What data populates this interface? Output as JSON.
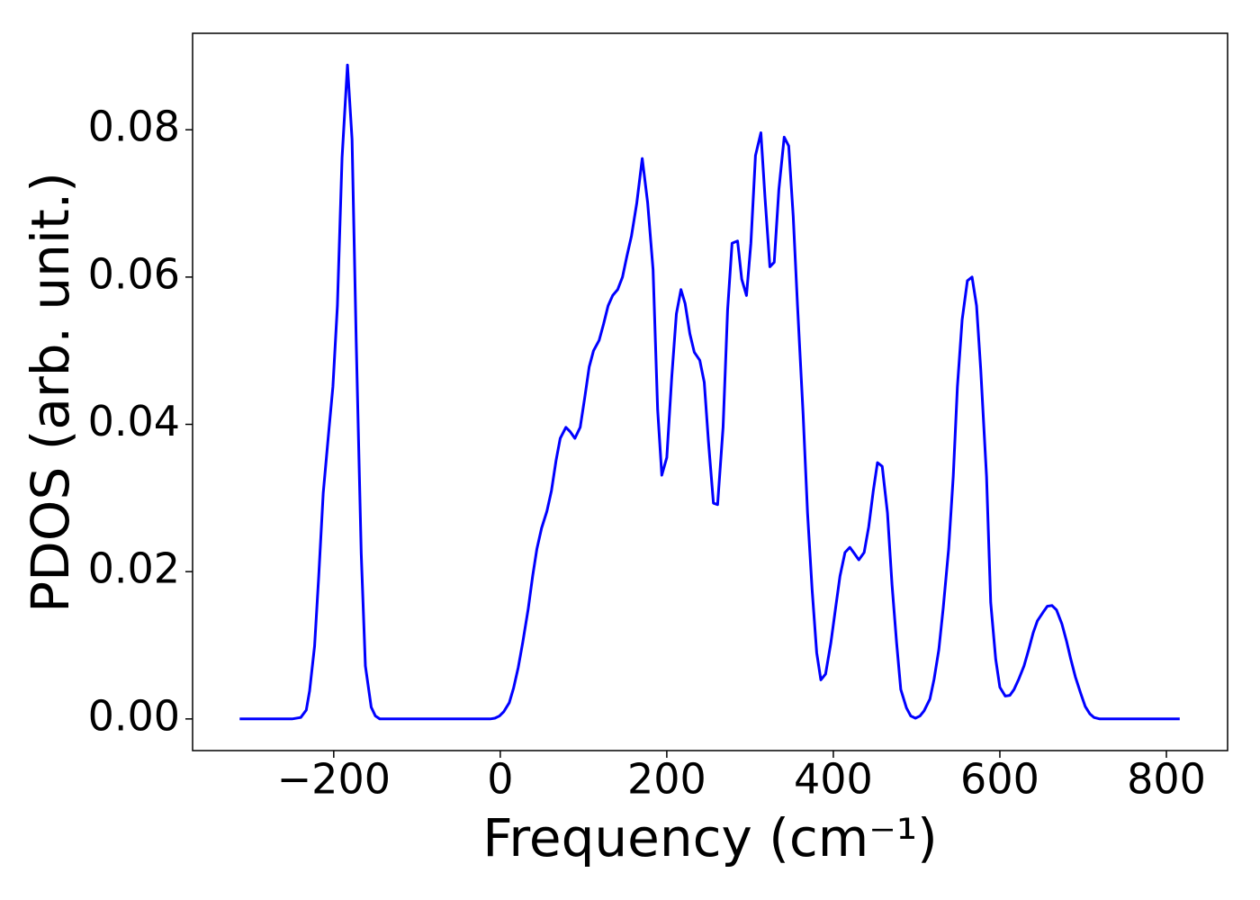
{
  "chart_data": {
    "type": "line",
    "xlabel": "Frequency (cm⁻¹)",
    "ylabel": "PDOS (arb. unit.)",
    "color": "#0000ff",
    "xlim": [
      -369.5,
      873.5
    ],
    "ylim": [
      -0.0043,
      0.0931
    ],
    "xticks": [
      {
        "value": -200,
        "label": "−200"
      },
      0,
      200,
      400,
      600,
      800
    ],
    "yticks": [
      {
        "value": 0,
        "label": "0.00"
      },
      {
        "value": 0.02,
        "label": "0.02"
      },
      {
        "value": 0.04,
        "label": "0.04"
      },
      {
        "value": 0.06,
        "label": "0.06"
      },
      {
        "value": 0.08,
        "label": "0.08"
      }
    ],
    "x": [
      -313,
      -250,
      -239.6,
      -233,
      -229,
      -223,
      -218,
      -212.6,
      -206,
      -201,
      -195.6,
      -190,
      -183.5,
      -178,
      -173,
      -167,
      -162,
      -155,
      -150,
      -144.6,
      -12,
      -6.5,
      -1,
      4.3,
      10.8,
      16,
      21.6,
      27,
      33.5,
      38.9,
      44,
      49.6,
      56,
      61.5,
      67,
      72,
      78.8,
      84,
      89.6,
      96,
      101.4,
      106.8,
      112,
      118.7,
      124,
      129.5,
      135,
      141,
      146.8,
      152,
      157.6,
      164,
      170.5,
      177,
      183.5,
      189,
      194,
      200,
      206,
      211.5,
      217,
      222,
      227.7,
      233,
      239.6,
      245,
      250,
      256,
      261,
      267.6,
      273,
      278.4,
      285,
      290,
      295.7,
      301,
      306.5,
      313,
      318,
      323.8,
      329,
      334.6,
      341,
      346.4,
      351.8,
      357,
      363.7,
      369,
      374.5,
      380,
      385,
      390.7,
      397,
      402.5,
      408,
      414,
      419.8,
      425,
      430.6,
      437,
      442.5,
      448,
      453,
      458.7,
      465,
      470.5,
      476,
      481,
      487.8,
      493,
      498.6,
      504,
      509,
      516,
      521,
      526.7,
      532,
      538.5,
      544,
      549,
      554.7,
      561,
      566.6,
      572,
      577,
      584,
      589,
      595,
      600,
      606.5,
      612,
      617,
      622.7,
      629,
      634.6,
      640,
      645,
      652,
      657,
      662.6,
      668,
      674.5,
      680,
      685,
      690.7,
      697,
      702.5,
      708,
      713,
      720,
      816
    ],
    "values": [
      0,
      0,
      0.0002,
      0.0012,
      0.0038,
      0.0099,
      0.0194,
      0.0307,
      0.039,
      0.0451,
      0.0561,
      0.0762,
      0.0888,
      0.0787,
      0.0512,
      0.0225,
      0.0072,
      0.0016,
      0.0004,
      0,
      0,
      0.0001,
      0.0004,
      0.001,
      0.0022,
      0.0042,
      0.007,
      0.0104,
      0.0149,
      0.0194,
      0.0231,
      0.0259,
      0.0282,
      0.031,
      0.0351,
      0.0381,
      0.0396,
      0.039,
      0.0381,
      0.0396,
      0.0436,
      0.0478,
      0.05,
      0.0514,
      0.0536,
      0.0561,
      0.0575,
      0.0583,
      0.06,
      0.0628,
      0.0656,
      0.0701,
      0.0761,
      0.0701,
      0.061,
      0.042,
      0.0331,
      0.0355,
      0.0465,
      0.055,
      0.0583,
      0.0564,
      0.0523,
      0.0498,
      0.0487,
      0.0457,
      0.0377,
      0.0293,
      0.0291,
      0.0396,
      0.0555,
      0.0646,
      0.0649,
      0.0597,
      0.0575,
      0.0646,
      0.0765,
      0.0796,
      0.0707,
      0.0614,
      0.062,
      0.0719,
      0.079,
      0.0778,
      0.0683,
      0.0561,
      0.0414,
      0.028,
      0.0176,
      0.009,
      0.0053,
      0.0061,
      0.0103,
      0.0149,
      0.0194,
      0.0226,
      0.0233,
      0.0225,
      0.0216,
      0.0226,
      0.0261,
      0.031,
      0.0348,
      0.0343,
      0.028,
      0.0182,
      0.0103,
      0.004,
      0.0015,
      0.0004,
      0.0001,
      0.0004,
      0.0011,
      0.0027,
      0.0054,
      0.0094,
      0.0151,
      0.0231,
      0.0329,
      0.0451,
      0.0542,
      0.0595,
      0.06,
      0.0561,
      0.0475,
      0.0329,
      0.0158,
      0.0081,
      0.0043,
      0.0031,
      0.0032,
      0.004,
      0.0054,
      0.0072,
      0.0094,
      0.0117,
      0.0133,
      0.0145,
      0.0153,
      0.0154,
      0.0148,
      0.0129,
      0.0106,
      0.0082,
      0.0057,
      0.0035,
      0.0017,
      0.0007,
      0.0002,
      0,
      0
    ]
  }
}
